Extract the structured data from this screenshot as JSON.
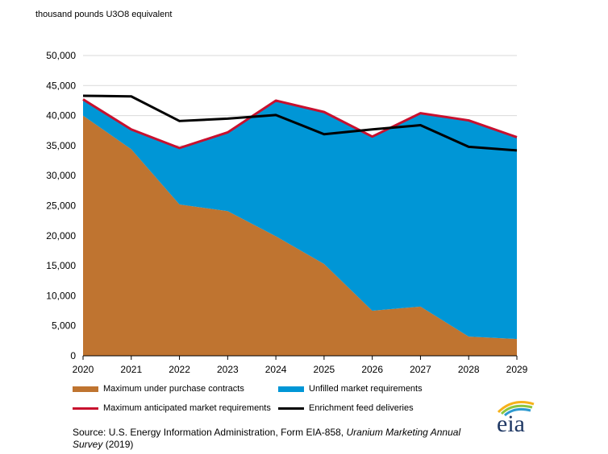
{
  "chart_data": {
    "type": "area",
    "y_unit_label": "thousand pounds U3O8 equivalent",
    "x": [
      "2020",
      "2021",
      "2022",
      "2023",
      "2024",
      "2025",
      "2026",
      "2027",
      "2028",
      "2029"
    ],
    "ylim": [
      0,
      50000
    ],
    "yticks": [
      "0",
      "5,000",
      "10,000",
      "15,000",
      "20,000",
      "25,000",
      "30,000",
      "35,000",
      "40,000",
      "45,000",
      "50,000"
    ],
    "grid": true,
    "legend_position": "bottom",
    "series": [
      {
        "name": "Maximum under purchase contracts",
        "kind": "area",
        "color": "#BF7430",
        "values": [
          40000,
          34400,
          25200,
          24100,
          19900,
          15300,
          7500,
          8200,
          3200,
          2800
        ]
      },
      {
        "name": "Unfilled market requirements",
        "kind": "area",
        "color": "#0096D6",
        "values": [
          2700,
          3300,
          9400,
          13100,
          22600,
          25300,
          29000,
          32200,
          36000,
          33600
        ]
      },
      {
        "name": "Maximum anticipated market requirements",
        "kind": "line",
        "color": "#C8102E",
        "values": [
          42700,
          37700,
          34600,
          37200,
          42500,
          40600,
          36500,
          40400,
          39200,
          36400
        ]
      },
      {
        "name": "Enrichment feed deliveries",
        "kind": "line",
        "color": "#000000",
        "values": [
          43300,
          43200,
          39100,
          39500,
          40100,
          36900,
          37700,
          38400,
          34800,
          34200
        ]
      }
    ]
  },
  "legend": {
    "items": [
      {
        "label": "Maximum under purchase contracts",
        "color": "#BF7430",
        "kind": "area"
      },
      {
        "label": "Unfilled market requirements",
        "color": "#0096D6",
        "kind": "area"
      },
      {
        "label": "Maximum anticipated market requirements",
        "color": "#C8102E",
        "kind": "line"
      },
      {
        "label": "Enrichment feed deliveries",
        "color": "#000000",
        "kind": "line"
      }
    ]
  },
  "source": {
    "prefix": "Source: U.S. Energy Information Administration, Form EIA-858, ",
    "title": "Uranium Marketing Annual Survey",
    "suffix": " (2019)"
  },
  "logo": {
    "text": "eia"
  }
}
